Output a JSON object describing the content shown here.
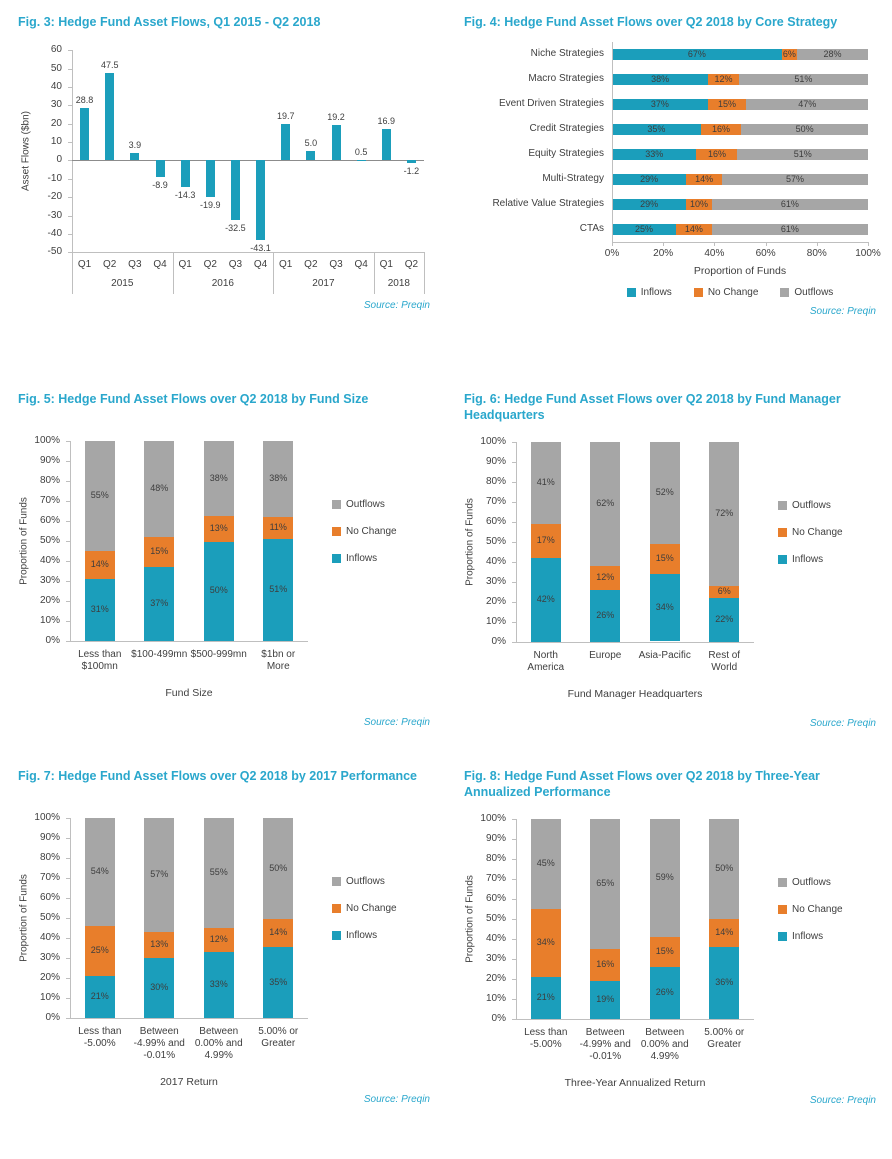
{
  "colors": {
    "inflows": "#1B9EBB",
    "no_change": "#E87E2B",
    "outflows": "#A6A6A6",
    "title_text": "#2AA7CC",
    "axis_text": "#404040",
    "axis_line": "#BFBFBF"
  },
  "chart_data": [
    {
      "id": "fig3",
      "type": "bar",
      "title": "Fig. 3: Hedge Fund Asset Flows, Q1 2015 - Q2 2018",
      "ylabel": "Asset Flows ($bn)",
      "ylim": [
        -50,
        60
      ],
      "ytick_step": 10,
      "yticks": [
        "60",
        "50",
        "40",
        "30",
        "20",
        "10",
        "0",
        "-10",
        "-20",
        "-30",
        "-40",
        "-50"
      ],
      "categories": [
        "Q1",
        "Q2",
        "Q3",
        "Q4",
        "Q1",
        "Q2",
        "Q3",
        "Q4",
        "Q1",
        "Q2",
        "Q3",
        "Q4",
        "Q1",
        "Q2"
      ],
      "groups": [
        {
          "label": "2015",
          "span": 4
        },
        {
          "label": "2016",
          "span": 4
        },
        {
          "label": "2017",
          "span": 4
        },
        {
          "label": "2018",
          "span": 2
        }
      ],
      "values": [
        28.8,
        47.5,
        3.9,
        -8.9,
        -14.3,
        -19.9,
        -32.5,
        -43.1,
        19.7,
        5.0,
        19.2,
        0.5,
        16.9,
        -1.2
      ],
      "series_color": "inflows",
      "grid": false,
      "source": "Source: Preqin"
    },
    {
      "id": "fig4",
      "type": "hstack",
      "title": "Fig. 4: Hedge Fund Asset Flows over Q2 2018 by Core Strategy",
      "xlabel": "Proportion of Funds",
      "categories": [
        "Niche Strategies",
        "Macro Strategies",
        "Event Driven Strategies",
        "Credit Strategies",
        "Equity Strategies",
        "Multi-Strategy",
        "Relative Value Strategies",
        "CTAs"
      ],
      "series": [
        {
          "name": "Inflows",
          "color_key": "inflows",
          "values": [
            67,
            38,
            37,
            35,
            33,
            29,
            29,
            25
          ]
        },
        {
          "name": "No Change",
          "color_key": "no_change",
          "values": [
            6,
            12,
            15,
            16,
            16,
            14,
            10,
            14
          ]
        },
        {
          "name": "Outflows",
          "color_key": "outflows",
          "values": [
            28,
            51,
            47,
            50,
            51,
            57,
            61,
            61
          ]
        }
      ],
      "xticks": [
        "0%",
        "20%",
        "40%",
        "60%",
        "80%",
        "100%"
      ],
      "xlim": [
        0,
        100
      ],
      "legend_order": [
        "Inflows",
        "No Change",
        "Outflows"
      ],
      "legend_position": "bottom",
      "source": "Source: Preqin"
    },
    {
      "id": "fig5",
      "type": "vstack",
      "title": "Fig. 5: Hedge Fund Asset Flows over Q2 2018 by Fund Size",
      "ylabel": "Proportion of Funds",
      "xlabel": "Fund Size",
      "categories": [
        "Less than\n$100mn",
        "$100-499mn",
        "$500-999mn",
        "$1bn or\nMore"
      ],
      "series": [
        {
          "name": "Inflows",
          "color_key": "inflows",
          "values": [
            31,
            37,
            50,
            51
          ]
        },
        {
          "name": "No Change",
          "color_key": "no_change",
          "values": [
            14,
            15,
            13,
            11
          ]
        },
        {
          "name": "Outflows",
          "color_key": "outflows",
          "values": [
            55,
            48,
            38,
            38
          ]
        }
      ],
      "yticks": [
        "0%",
        "10%",
        "20%",
        "30%",
        "40%",
        "50%",
        "60%",
        "70%",
        "80%",
        "90%",
        "100%"
      ],
      "legend_order": [
        "Outflows",
        "No Change",
        "Inflows"
      ],
      "legend_position": "right",
      "source": "Source: Preqin"
    },
    {
      "id": "fig6",
      "type": "vstack",
      "title": "Fig. 6: Hedge Fund Asset Flows over Q2 2018 by Fund Manager Headquarters",
      "ylabel": "Proportion of Funds",
      "xlabel": "Fund Manager Headquarters",
      "categories": [
        "North\nAmerica",
        "Europe",
        "Asia-Pacific",
        "Rest of\nWorld"
      ],
      "series": [
        {
          "name": "Inflows",
          "color_key": "inflows",
          "values": [
            42,
            26,
            34,
            22
          ]
        },
        {
          "name": "No Change",
          "color_key": "no_change",
          "values": [
            17,
            12,
            15,
            6
          ]
        },
        {
          "name": "Outflows",
          "color_key": "outflows",
          "values": [
            41,
            62,
            52,
            72
          ]
        }
      ],
      "yticks": [
        "0%",
        "10%",
        "20%",
        "30%",
        "40%",
        "50%",
        "60%",
        "70%",
        "80%",
        "90%",
        "100%"
      ],
      "legend_order": [
        "Outflows",
        "No Change",
        "Inflows"
      ],
      "legend_position": "right",
      "source": "Source: Preqin"
    },
    {
      "id": "fig7",
      "type": "vstack",
      "title": "Fig. 7: Hedge Fund Asset Flows over Q2 2018 by 2017 Performance",
      "ylabel": "Proportion of Funds",
      "xlabel": "2017 Return",
      "categories": [
        "Less than\n-5.00%",
        "Between\n-4.99% and\n-0.01%",
        "Between\n0.00% and\n4.99%",
        "5.00% or\nGreater"
      ],
      "series": [
        {
          "name": "Inflows",
          "color_key": "inflows",
          "values": [
            21,
            30,
            33,
            35
          ]
        },
        {
          "name": "No Change",
          "color_key": "no_change",
          "values": [
            25,
            13,
            12,
            14
          ]
        },
        {
          "name": "Outflows",
          "color_key": "outflows",
          "values": [
            54,
            57,
            55,
            50
          ]
        }
      ],
      "yticks": [
        "0%",
        "10%",
        "20%",
        "30%",
        "40%",
        "50%",
        "60%",
        "70%",
        "80%",
        "90%",
        "100%"
      ],
      "legend_order": [
        "Outflows",
        "No Change",
        "Inflows"
      ],
      "legend_position": "right",
      "source": "Source: Preqin"
    },
    {
      "id": "fig8",
      "type": "vstack",
      "title": "Fig. 8: Hedge Fund Asset Flows over Q2 2018 by Three-Year Annualized Performance",
      "ylabel": "Proportion of Funds",
      "xlabel": "Three-Year Annualized Return",
      "categories": [
        "Less than\n-5.00%",
        "Between\n-4.99% and\n-0.01%",
        "Between\n0.00% and\n4.99%",
        "5.00% or\nGreater"
      ],
      "series": [
        {
          "name": "Inflows",
          "color_key": "inflows",
          "values": [
            21,
            19,
            26,
            36
          ]
        },
        {
          "name": "No Change",
          "color_key": "no_change",
          "values": [
            34,
            16,
            15,
            14
          ]
        },
        {
          "name": "Outflows",
          "color_key": "outflows",
          "values": [
            45,
            65,
            59,
            50
          ]
        }
      ],
      "yticks": [
        "0%",
        "10%",
        "20%",
        "30%",
        "40%",
        "50%",
        "60%",
        "70%",
        "80%",
        "90%",
        "100%"
      ],
      "legend_order": [
        "Outflows",
        "No Change",
        "Inflows"
      ],
      "legend_position": "right",
      "source": "Source: Preqin"
    }
  ]
}
